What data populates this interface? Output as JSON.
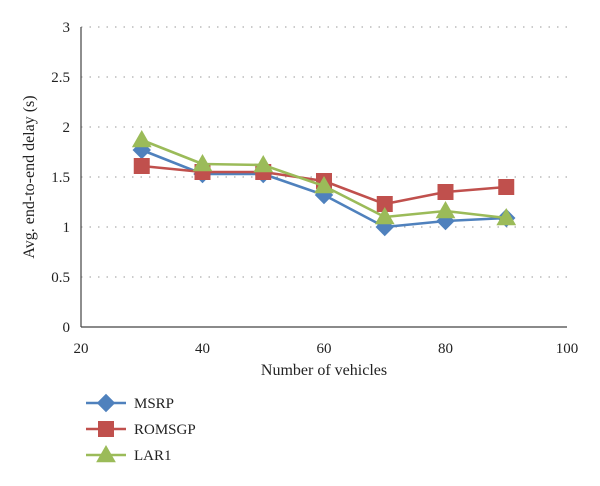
{
  "chart_data": {
    "type": "line",
    "xlabel": "Number of vehicles",
    "ylabel": "Avg. end-to-end delay (s)",
    "xlim": [
      20,
      100
    ],
    "ylim": [
      0,
      3
    ],
    "xticks": [
      "20",
      "40",
      "60",
      "80",
      "100"
    ],
    "yticks": [
      "0",
      "0.5",
      "1",
      "1.5",
      "2",
      "2.5",
      "3"
    ],
    "grid": "horizontal dotted",
    "legend_position": "bottom-left, below plot",
    "x": [
      30,
      40,
      50,
      60,
      70,
      80,
      90
    ],
    "series": [
      {
        "name": "MSRP",
        "color": "#4f81bd",
        "marker": "diamond",
        "values": [
          1.77,
          1.53,
          1.53,
          1.32,
          1.0,
          1.06,
          1.09
        ]
      },
      {
        "name": "ROMSGP",
        "color": "#c0504d",
        "marker": "square",
        "values": [
          1.61,
          1.55,
          1.55,
          1.46,
          1.23,
          1.35,
          1.4
        ]
      },
      {
        "name": "LAR1",
        "color": "#9bbb59",
        "marker": "triangle",
        "values": [
          1.87,
          1.63,
          1.62,
          1.41,
          1.1,
          1.16,
          1.09
        ]
      }
    ]
  }
}
